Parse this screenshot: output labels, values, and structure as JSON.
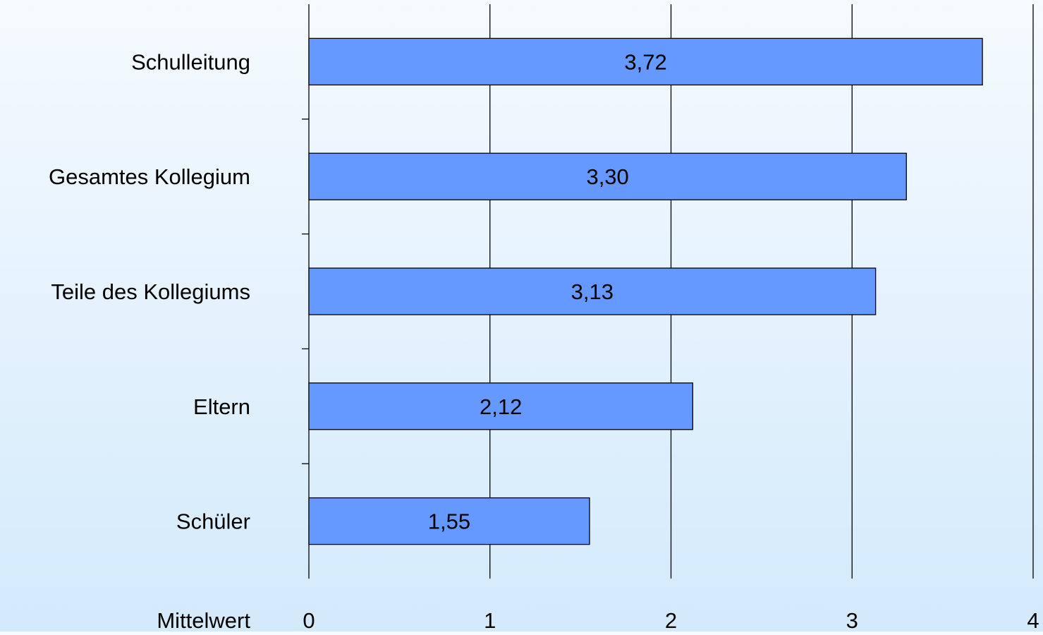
{
  "chart_data": {
    "type": "bar",
    "orientation": "horizontal",
    "categories": [
      "Schulleitung",
      "Gesamtes Kollegium",
      "Teile des Kollegiums",
      "Eltern",
      "Schüler"
    ],
    "values": [
      3.72,
      3.3,
      3.13,
      2.12,
      1.55
    ],
    "value_labels": [
      "3,72",
      "3,30",
      "3,13",
      "2,12",
      "1,55"
    ],
    "xlabel": "Mittelwert",
    "xlim": [
      0,
      4
    ],
    "x_ticks": [
      0,
      1,
      2,
      3,
      4
    ],
    "x_tick_labels": [
      "0",
      "1",
      "2",
      "3",
      "4"
    ],
    "grid": true,
    "bar_color": "#6699ff",
    "bar_edge_color": "#000000"
  }
}
